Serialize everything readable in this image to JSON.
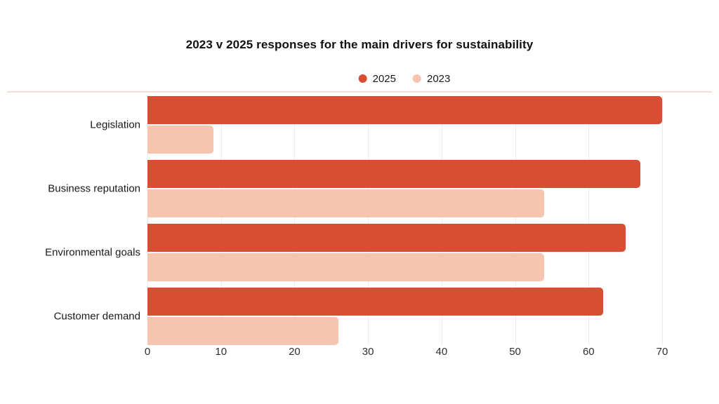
{
  "title": "2023 v 2025 responses for the main drivers for sustainability",
  "colors": {
    "series_2025": "#D94E32",
    "series_2023": "#F7C4B0",
    "gridline": "#ECECEC",
    "top_divider": "#F6DCCF",
    "title_text": "#111111",
    "label_text": "#1A1A1A",
    "tick_text": "#2E2E2E"
  },
  "legend": {
    "items": [
      {
        "label": "2025",
        "color": "#D94E32"
      },
      {
        "label": "2023",
        "color": "#F7C4B0"
      }
    ]
  },
  "chart_data": {
    "type": "bar",
    "orientation": "horizontal",
    "title": "2023 v 2025 responses for the main drivers for sustainability",
    "categories": [
      "Legislation",
      "Business reputation",
      "Environmental goals",
      "Customer demand"
    ],
    "series": [
      {
        "name": "2025",
        "color": "#D94E32",
        "values": [
          70,
          67,
          65,
          62
        ]
      },
      {
        "name": "2023",
        "color": "#F7C4B0",
        "values": [
          9,
          54,
          54,
          26
        ]
      }
    ],
    "xlabel": "",
    "ylabel": "",
    "xlim": [
      0,
      70
    ],
    "xticks": [
      0,
      10,
      20,
      30,
      40,
      50,
      60,
      70
    ],
    "grid": true,
    "legend_position": "top-center"
  }
}
